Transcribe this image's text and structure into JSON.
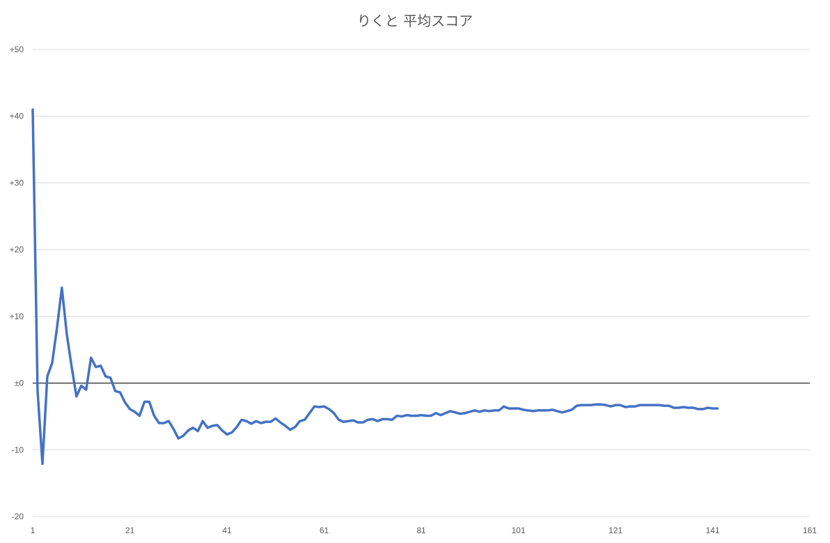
{
  "chart_data": {
    "type": "line",
    "title": "りくと 平均スコア",
    "xlabel": "",
    "ylabel": "",
    "xlim": [
      1,
      161
    ],
    "ylim": [
      -20,
      50
    ],
    "x_ticks": [
      1,
      21,
      41,
      61,
      81,
      101,
      121,
      141,
      161
    ],
    "x_tick_labels": [
      "1",
      "21",
      "41",
      "61",
      "81",
      "101",
      "121",
      "141",
      "161"
    ],
    "y_ticks": [
      -20,
      -10,
      0,
      10,
      20,
      30,
      40,
      50
    ],
    "y_tick_labels": [
      "-20",
      "-10",
      "±0",
      "+10",
      "+20",
      "+30",
      "+40",
      "+50"
    ],
    "grid": true,
    "zero_line": true,
    "series_color": "#4472C4",
    "grid_color": "#d9d9d9",
    "zero_line_color": "#404040",
    "series": [
      {
        "name": "",
        "values": [
          41.0,
          -1.2,
          -12.1,
          1.0,
          3.0,
          8.3,
          14.3,
          7.4,
          2.5,
          -2.0,
          -0.4,
          -1.0,
          3.8,
          2.4,
          2.6,
          1.0,
          0.8,
          -1.2,
          -1.4,
          -2.9,
          -3.9,
          -4.3,
          -4.9,
          -2.8,
          -2.8,
          -4.9,
          -6.0,
          -6.0,
          -5.7,
          -6.9,
          -8.3,
          -7.9,
          -7.1,
          -6.7,
          -7.2,
          -5.7,
          -6.7,
          -6.4,
          -6.3,
          -7.1,
          -7.7,
          -7.4,
          -6.6,
          -5.5,
          -5.7,
          -6.1,
          -5.7,
          -6.0,
          -5.8,
          -5.8,
          -5.3,
          -5.9,
          -6.4,
          -7.0,
          -6.6,
          -5.7,
          -5.5,
          -4.5,
          -3.5,
          -3.6,
          -3.5,
          -3.9,
          -4.5,
          -5.5,
          -5.8,
          -5.7,
          -5.6,
          -5.9,
          -5.9,
          -5.5,
          -5.4,
          -5.7,
          -5.4,
          -5.4,
          -5.5,
          -4.9,
          -5.0,
          -4.8,
          -4.9,
          -4.9,
          -4.8,
          -4.9,
          -4.9,
          -4.5,
          -4.8,
          -4.5,
          -4.2,
          -4.4,
          -4.6,
          -4.5,
          -4.3,
          -4.1,
          -4.3,
          -4.1,
          -4.2,
          -4.1,
          -4.1,
          -3.5,
          -3.8,
          -3.8,
          -3.8,
          -4.0,
          -4.1,
          -4.2,
          -4.1,
          -4.1,
          -4.1,
          -4.0,
          -4.2,
          -4.4,
          -4.2,
          -4.0,
          -3.4,
          -3.3,
          -3.3,
          -3.3,
          -3.2,
          -3.2,
          -3.3,
          -3.5,
          -3.3,
          -3.3,
          -3.6,
          -3.5,
          -3.5,
          -3.3,
          -3.3,
          -3.3,
          -3.3,
          -3.3,
          -3.4,
          -3.4,
          -3.7,
          -3.7,
          -3.6,
          -3.7,
          -3.7,
          -3.9,
          -3.9,
          -3.7,
          -3.8,
          -3.8
        ]
      }
    ]
  }
}
